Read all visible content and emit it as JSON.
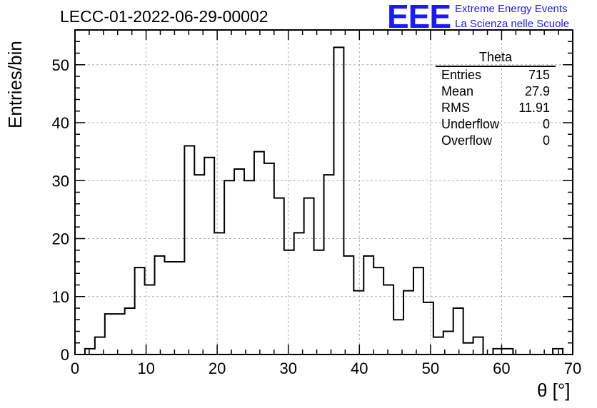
{
  "header": {
    "title": "LECC-01-2022-06-29-00002",
    "logo_text": "EEE",
    "logo_line1": "Extreme Energy Events",
    "logo_line2": "La Scienza nelle Scuole"
  },
  "stats_box": {
    "title": "Theta",
    "rows": [
      {
        "label": "Entries",
        "value": "715"
      },
      {
        "label": "Mean",
        "value": "27.9"
      },
      {
        "label": "RMS",
        "value": "11.91"
      },
      {
        "label": "Underflow",
        "value": "0"
      },
      {
        "label": "Overflow",
        "value": "0"
      }
    ]
  },
  "chart_data": {
    "type": "bar",
    "style": "step-histogram",
    "title": "LECC-01-2022-06-29-00002",
    "xlabel": "θ [°]",
    "ylabel": "Entries/bin",
    "xlim": [
      0,
      70
    ],
    "ylim": [
      0,
      56
    ],
    "bin_width": 1.4,
    "xticks": [
      0,
      10,
      20,
      30,
      40,
      50,
      60,
      70
    ],
    "yticks": [
      0,
      10,
      20,
      30,
      40,
      50
    ],
    "grid": true,
    "values": [
      0,
      1,
      3,
      7,
      7,
      8,
      15,
      12,
      17,
      16,
      16,
      36,
      31,
      34,
      21,
      30,
      32,
      30,
      35,
      33,
      27,
      18,
      21,
      27,
      18,
      31,
      53,
      17,
      11,
      17,
      15,
      12,
      6,
      11,
      15,
      9,
      3,
      4,
      8,
      2,
      3,
      0,
      1,
      1,
      0,
      0,
      0,
      0,
      1,
      0
    ]
  }
}
